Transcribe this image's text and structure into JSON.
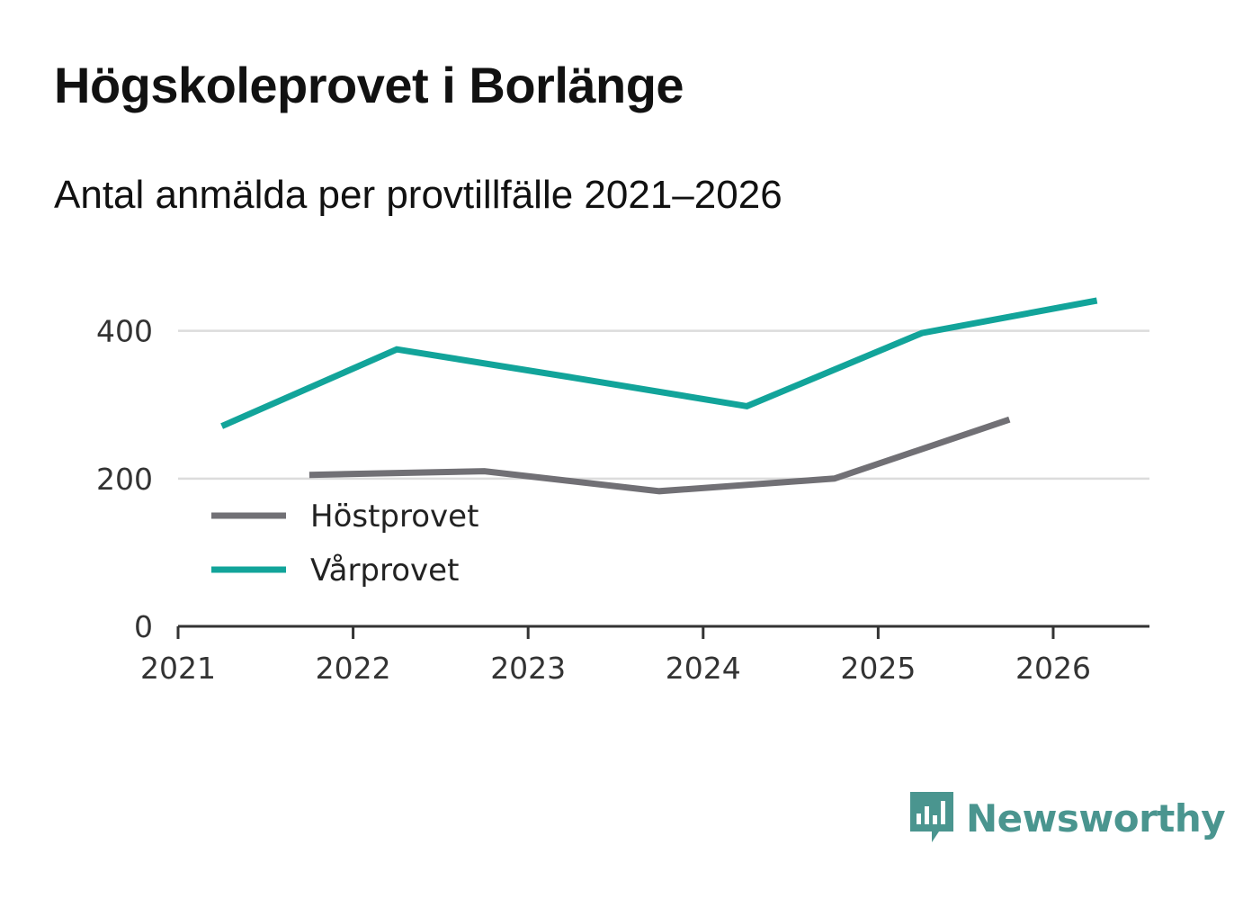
{
  "header": {
    "title": "Högskoleprovet i Borlänge",
    "subtitle": "Antal anmälda per provtillfälle 2021–2026"
  },
  "chart_data": {
    "type": "line",
    "title": "Högskoleprovet i Borlänge",
    "subtitle": "Antal anmälda per provtillfälle 2021–2026",
    "xlabel": "",
    "ylabel": "",
    "xlim": [
      2021,
      2026.55
    ],
    "ylim": [
      0,
      480
    ],
    "x_ticks": [
      "2021",
      "2022",
      "2023",
      "2024",
      "2025",
      "2026"
    ],
    "y_ticks": [
      "0",
      "200",
      "400"
    ],
    "grid": true,
    "legend_position": "lower-left",
    "series": [
      {
        "name": "Höstprovet",
        "color": "#717075",
        "x": [
          2021.75,
          2022.75,
          2023.75,
          2024.75,
          2025.75
        ],
        "y": [
          205,
          210,
          183,
          200,
          280
        ]
      },
      {
        "name": "Vårprovet",
        "color": "#12a49a",
        "x": [
          2021.25,
          2022.25,
          2023.25,
          2024.25,
          2025.25,
          2026.25
        ],
        "y": [
          271,
          375,
          337,
          298,
          397,
          441
        ]
      }
    ]
  },
  "brand": {
    "name": "Newsworthy",
    "color": "#4a958f"
  }
}
